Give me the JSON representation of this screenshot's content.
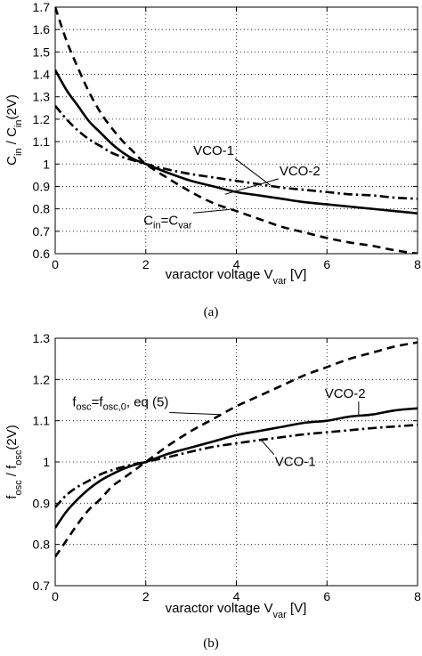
{
  "chart_data": [
    {
      "type": "line",
      "id": "a",
      "caption": "(a)",
      "xlabel": "varactor voltage V",
      "xlabel_sub": "var",
      "xlabel_unit": " [V]",
      "ylabel_parts": [
        "C",
        "in",
        " / C",
        "in",
        "(2V)"
      ],
      "xlim": [
        0,
        8
      ],
      "ylim": [
        0.6,
        1.7
      ],
      "xticks": [
        "0",
        "2",
        "4",
        "6",
        "8"
      ],
      "xtick_values": [
        0,
        2,
        4,
        6,
        8
      ],
      "yticks": [
        "0.6",
        "0.7",
        "0.8",
        "0.9",
        "1",
        "1.1",
        "1.2",
        "1.3",
        "1.4",
        "1.5",
        "1.6",
        "1.7"
      ],
      "ytick_values": [
        0.6,
        0.7,
        0.8,
        0.9,
        1.0,
        1.1,
        1.2,
        1.3,
        1.4,
        1.5,
        1.6,
        1.7
      ],
      "grid": true,
      "series": [
        {
          "style": "solid",
          "x": [
            0,
            0.25,
            0.5,
            0.75,
            1,
            1.25,
            1.5,
            1.75,
            2,
            2.5,
            3,
            3.5,
            4,
            4.5,
            5,
            5.5,
            6,
            6.5,
            7,
            7.5,
            8
          ],
          "y": [
            1.42,
            1.33,
            1.26,
            1.19,
            1.14,
            1.09,
            1.05,
            1.02,
            1.0,
            0.96,
            0.925,
            0.9,
            0.875,
            0.86,
            0.845,
            0.83,
            0.82,
            0.81,
            0.8,
            0.79,
            0.78
          ]
        },
        {
          "style": "dashed",
          "x": [
            0,
            0.25,
            0.5,
            0.75,
            1,
            1.25,
            1.5,
            1.75,
            2,
            2.5,
            3,
            3.5,
            4,
            4.5,
            5,
            5.5,
            6,
            6.5,
            7,
            7.5,
            8
          ],
          "y": [
            1.7,
            1.55,
            1.43,
            1.32,
            1.23,
            1.16,
            1.1,
            1.05,
            1.0,
            0.935,
            0.875,
            0.825,
            0.79,
            0.755,
            0.72,
            0.695,
            0.67,
            0.65,
            0.635,
            0.615,
            0.6
          ]
        },
        {
          "style": "dashdot",
          "x": [
            0,
            0.25,
            0.5,
            0.75,
            1,
            1.25,
            1.5,
            1.75,
            2,
            2.5,
            3,
            3.5,
            4,
            4.5,
            5,
            5.5,
            6,
            6.5,
            7,
            7.5,
            8
          ],
          "y": [
            1.26,
            1.2,
            1.15,
            1.11,
            1.08,
            1.05,
            1.03,
            1.015,
            1.0,
            0.975,
            0.955,
            0.94,
            0.925,
            0.91,
            0.895,
            0.885,
            0.875,
            0.865,
            0.86,
            0.85,
            0.845
          ]
        }
      ],
      "annotations": [
        {
          "text": "VCO-1",
          "x": 3.05,
          "y": 1.04,
          "ax": 4.75,
          "ay": 0.905
        },
        {
          "text": "VCO-2",
          "x": 4.95,
          "y": 0.95,
          "ax": 3.75,
          "ay": 0.865
        },
        {
          "text_parts": [
            "C",
            "in",
            "=C",
            "var"
          ],
          "x": 1.95,
          "y": 0.73,
          "ax": 3.85,
          "ay": 0.797
        }
      ]
    },
    {
      "type": "line",
      "id": "b",
      "caption": "(b)",
      "xlabel": "varactor voltage V",
      "xlabel_sub": "var",
      "xlabel_unit": " [V]",
      "ylabel_parts": [
        "f",
        "osc",
        " / f",
        "osc",
        "(2V)"
      ],
      "xlim": [
        0,
        8
      ],
      "ylim": [
        0.7,
        1.3
      ],
      "xticks": [
        "0",
        "2",
        "4",
        "6",
        "8"
      ],
      "xtick_values": [
        0,
        2,
        4,
        6,
        8
      ],
      "yticks": [
        "0.7",
        "0.8",
        "0.9",
        "1",
        "1.1",
        "1.2",
        "1.3"
      ],
      "ytick_values": [
        0.7,
        0.8,
        0.9,
        1.0,
        1.1,
        1.2,
        1.3
      ],
      "grid": true,
      "series": [
        {
          "style": "solid",
          "x": [
            0,
            0.25,
            0.5,
            0.75,
            1,
            1.25,
            1.5,
            1.75,
            2,
            2.5,
            3,
            3.5,
            4,
            4.5,
            5,
            5.5,
            6,
            6.5,
            7,
            7.5,
            8
          ],
          "y": [
            0.84,
            0.88,
            0.91,
            0.935,
            0.955,
            0.97,
            0.983,
            0.993,
            1.0,
            1.02,
            1.035,
            1.05,
            1.065,
            1.075,
            1.085,
            1.095,
            1.1,
            1.11,
            1.115,
            1.125,
            1.13
          ]
        },
        {
          "style": "dashed",
          "x": [
            0,
            0.25,
            0.5,
            0.75,
            1,
            1.25,
            1.5,
            1.75,
            2,
            2.5,
            3,
            3.5,
            4,
            4.5,
            5,
            5.5,
            6,
            6.5,
            7,
            7.5,
            8
          ],
          "y": [
            0.77,
            0.81,
            0.85,
            0.885,
            0.91,
            0.94,
            0.96,
            0.98,
            1.0,
            1.04,
            1.075,
            1.105,
            1.135,
            1.16,
            1.185,
            1.21,
            1.23,
            1.25,
            1.265,
            1.28,
            1.29
          ]
        },
        {
          "style": "dashdot",
          "x": [
            0,
            0.25,
            0.5,
            0.75,
            1,
            1.25,
            1.5,
            1.75,
            2,
            2.5,
            3,
            3.5,
            4,
            4.5,
            5,
            5.5,
            6,
            6.5,
            7,
            7.5,
            8
          ],
          "y": [
            0.89,
            0.92,
            0.94,
            0.955,
            0.97,
            0.98,
            0.988,
            0.995,
            1.0,
            1.012,
            1.025,
            1.037,
            1.045,
            1.053,
            1.06,
            1.067,
            1.072,
            1.077,
            1.082,
            1.086,
            1.09
          ]
        }
      ],
      "annotations": [
        {
          "text": "VCO-2",
          "x": 5.95,
          "y": 1.155,
          "ax": 6.7,
          "ay": 1.113
        },
        {
          "text": "VCO-1",
          "x": 4.85,
          "y": 0.99,
          "ax": 4.55,
          "ay": 1.053
        },
        {
          "text_parts": [
            "f",
            "osc",
            "=f",
            "osc,0",
            ", eq (5)"
          ],
          "x": 0.38,
          "y": 1.135,
          "ax": 3.65,
          "ay": 1.115
        }
      ]
    }
  ]
}
